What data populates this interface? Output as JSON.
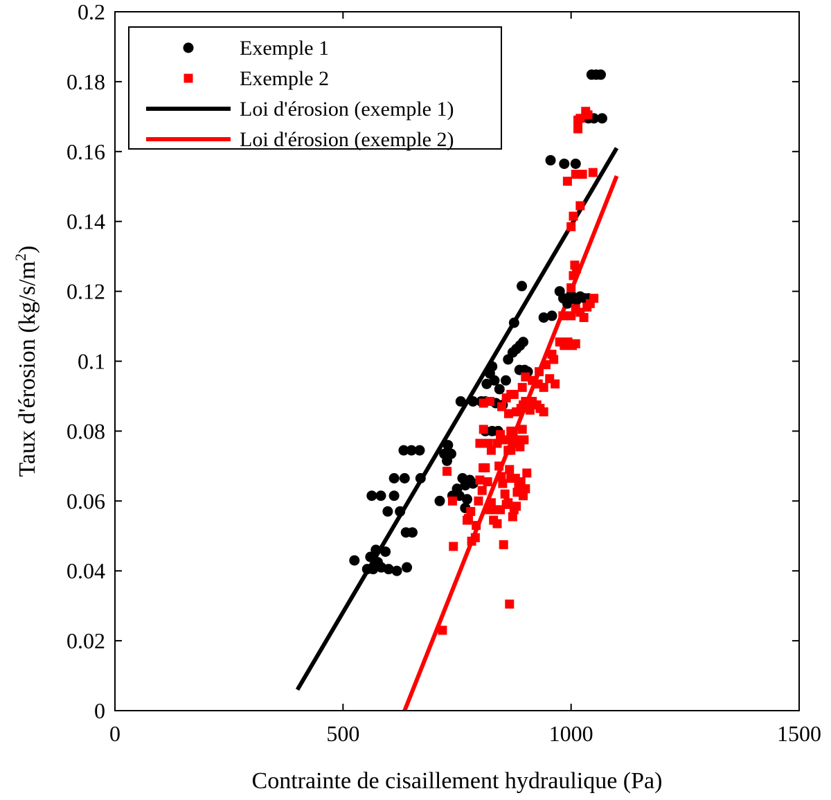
{
  "chart_data": {
    "type": "scatter",
    "xlabel": "Contrainte de cisaillement hydraulique (Pa)",
    "ylabel": "Taux d'érosion (kg/s/m",
    "ylabel_superscript": "2",
    "ylabel_suffix": ")",
    "xlim": [
      0,
      1500
    ],
    "ylim": [
      0,
      0.2
    ],
    "x_ticks": [
      0,
      500,
      1000,
      1500
    ],
    "x_tick_labels": [
      "0",
      "500",
      "1000",
      "1500"
    ],
    "y_ticks": [
      0,
      0.02,
      0.04,
      0.06,
      0.08,
      0.1,
      0.12,
      0.14,
      0.16,
      0.18,
      0.2
    ],
    "y_tick_labels": [
      "0",
      "0.02",
      "0.04",
      "0.06",
      "0.08",
      "0.1",
      "0.12",
      "0.14",
      "0.16",
      "0.18",
      "0.2"
    ],
    "grid": false,
    "legend_position": "top-left",
    "series": [
      {
        "name": "Exemple 1",
        "kind": "scatter",
        "marker": "circle",
        "color": "#000000",
        "points": [
          [
            525,
            0.043
          ],
          [
            553,
            0.0405
          ],
          [
            560,
            0.044
          ],
          [
            566,
            0.0405
          ],
          [
            572,
            0.046
          ],
          [
            576,
            0.0425
          ],
          [
            584,
            0.041
          ],
          [
            593,
            0.0455
          ],
          [
            600,
            0.0405
          ],
          [
            618,
            0.04
          ],
          [
            640,
            0.041
          ],
          [
            563,
            0.0615
          ],
          [
            583,
            0.0615
          ],
          [
            598,
            0.057
          ],
          [
            612,
            0.0615
          ],
          [
            612,
            0.0665
          ],
          [
            625,
            0.057
          ],
          [
            638,
            0.051
          ],
          [
            652,
            0.051
          ],
          [
            635,
            0.0665
          ],
          [
            670,
            0.0665
          ],
          [
            633,
            0.0745
          ],
          [
            650,
            0.0745
          ],
          [
            668,
            0.0745
          ],
          [
            712,
            0.06
          ],
          [
            722,
            0.0735
          ],
          [
            730,
            0.076
          ],
          [
            737,
            0.0735
          ],
          [
            728,
            0.0715
          ],
          [
            740,
            0.0615
          ],
          [
            750,
            0.0635
          ],
          [
            755,
            0.0615
          ],
          [
            762,
            0.0665
          ],
          [
            768,
            0.0645
          ],
          [
            772,
            0.0605
          ],
          [
            778,
            0.066
          ],
          [
            785,
            0.065
          ],
          [
            768,
            0.058
          ],
          [
            758,
            0.0885
          ],
          [
            785,
            0.0885
          ],
          [
            803,
            0.0885
          ],
          [
            812,
            0.0885
          ],
          [
            815,
            0.0935
          ],
          [
            822,
            0.0965
          ],
          [
            827,
            0.0985
          ],
          [
            832,
            0.0945
          ],
          [
            835,
            0.088
          ],
          [
            843,
            0.092
          ],
          [
            850,
            0.0875
          ],
          [
            857,
            0.0945
          ],
          [
            812,
            0.08
          ],
          [
            827,
            0.08
          ],
          [
            840,
            0.08
          ],
          [
            862,
            0.1005
          ],
          [
            872,
            0.1025
          ],
          [
            880,
            0.1035
          ],
          [
            888,
            0.1045
          ],
          [
            895,
            0.1055
          ],
          [
            898,
            0.0975
          ],
          [
            905,
            0.097
          ],
          [
            887,
            0.0975
          ],
          [
            875,
            0.111
          ],
          [
            892,
            0.1215
          ],
          [
            940,
            0.1125
          ],
          [
            958,
            0.113
          ],
          [
            975,
            0.12
          ],
          [
            983,
            0.118
          ],
          [
            992,
            0.1165
          ],
          [
            1000,
            0.119
          ],
          [
            1012,
            0.1175
          ],
          [
            1020,
            0.1185
          ],
          [
            1030,
            0.118
          ],
          [
            1038,
            0.118
          ],
          [
            955,
            0.1575
          ],
          [
            985,
            0.1565
          ],
          [
            1010,
            0.1565
          ],
          [
            1038,
            0.1695
          ],
          [
            1050,
            0.1695
          ],
          [
            1068,
            0.1695
          ],
          [
            1045,
            0.182
          ],
          [
            1055,
            0.182
          ],
          [
            1065,
            0.182
          ]
        ]
      },
      {
        "name": "Exemple 2",
        "kind": "scatter",
        "marker": "square",
        "color": "#ff0000",
        "points": [
          [
            718,
            0.023
          ],
          [
            865,
            0.0305
          ],
          [
            742,
            0.047
          ],
          [
            852,
            0.0475
          ],
          [
            728,
            0.0685
          ],
          [
            740,
            0.06
          ],
          [
            772,
            0.0545
          ],
          [
            775,
            0.055
          ],
          [
            780,
            0.057
          ],
          [
            782,
            0.0485
          ],
          [
            790,
            0.0495
          ],
          [
            792,
            0.053
          ],
          [
            797,
            0.06
          ],
          [
            800,
            0.066
          ],
          [
            805,
            0.063
          ],
          [
            807,
            0.0695
          ],
          [
            812,
            0.0695
          ],
          [
            817,
            0.0655
          ],
          [
            821,
            0.0575
          ],
          [
            825,
            0.0595
          ],
          [
            830,
            0.0545
          ],
          [
            833,
            0.0575
          ],
          [
            838,
            0.0535
          ],
          [
            842,
            0.07
          ],
          [
            845,
            0.0575
          ],
          [
            847,
            0.067
          ],
          [
            850,
            0.065
          ],
          [
            855,
            0.062
          ],
          [
            858,
            0.059
          ],
          [
            862,
            0.0595
          ],
          [
            865,
            0.069
          ],
          [
            868,
            0.0665
          ],
          [
            872,
            0.0555
          ],
          [
            875,
            0.0575
          ],
          [
            878,
            0.0665
          ],
          [
            882,
            0.0625
          ],
          [
            885,
            0.0645
          ],
          [
            890,
            0.0655
          ],
          [
            895,
            0.0615
          ],
          [
            900,
            0.0635
          ],
          [
            903,
            0.068
          ],
          [
            880,
            0.0585
          ],
          [
            868,
            0.0745
          ],
          [
            800,
            0.0765
          ],
          [
            808,
            0.0805
          ],
          [
            818,
            0.0765
          ],
          [
            825,
            0.0745
          ],
          [
            838,
            0.0765
          ],
          [
            845,
            0.079
          ],
          [
            850,
            0.0775
          ],
          [
            858,
            0.0775
          ],
          [
            862,
            0.0745
          ],
          [
            868,
            0.08
          ],
          [
            873,
            0.0785
          ],
          [
            878,
            0.0765
          ],
          [
            882,
            0.0775
          ],
          [
            888,
            0.0755
          ],
          [
            893,
            0.0805
          ],
          [
            897,
            0.0775
          ],
          [
            808,
            0.088
          ],
          [
            822,
            0.0885
          ],
          [
            848,
            0.087
          ],
          [
            858,
            0.0895
          ],
          [
            863,
            0.085
          ],
          [
            868,
            0.0905
          ],
          [
            875,
            0.0905
          ],
          [
            880,
            0.0855
          ],
          [
            890,
            0.0865
          ],
          [
            895,
            0.0875
          ],
          [
            900,
            0.0885
          ],
          [
            910,
            0.086
          ],
          [
            915,
            0.0885
          ],
          [
            925,
            0.0875
          ],
          [
            932,
            0.0865
          ],
          [
            940,
            0.0855
          ],
          [
            893,
            0.0925
          ],
          [
            900,
            0.0955
          ],
          [
            915,
            0.0945
          ],
          [
            928,
            0.0935
          ],
          [
            940,
            0.0925
          ],
          [
            953,
            0.095
          ],
          [
            965,
            0.0935
          ],
          [
            930,
            0.097
          ],
          [
            945,
            0.099
          ],
          [
            958,
            0.102
          ],
          [
            962,
            0.1005
          ],
          [
            975,
            0.1055
          ],
          [
            985,
            0.1045
          ],
          [
            993,
            0.1055
          ],
          [
            1003,
            0.1045
          ],
          [
            1010,
            0.105
          ],
          [
            982,
            0.113
          ],
          [
            1000,
            0.113
          ],
          [
            1010,
            0.115
          ],
          [
            1020,
            0.114
          ],
          [
            1028,
            0.1125
          ],
          [
            1035,
            0.1155
          ],
          [
            1042,
            0.1165
          ],
          [
            1050,
            0.118
          ],
          [
            1000,
            0.121
          ],
          [
            1005,
            0.1245
          ],
          [
            1008,
            0.1275
          ],
          [
            1012,
            0.1265
          ],
          [
            1000,
            0.1385
          ],
          [
            1005,
            0.1415
          ],
          [
            1020,
            0.1445
          ],
          [
            992,
            0.1515
          ],
          [
            1010,
            0.1535
          ],
          [
            1025,
            0.1535
          ],
          [
            1048,
            0.154
          ],
          [
            1015,
            0.1665
          ],
          [
            1015,
            0.169
          ],
          [
            1020,
            0.1695
          ],
          [
            1032,
            0.1715
          ],
          [
            1037,
            0.1705
          ]
        ]
      },
      {
        "name": "Loi d'érosion (exemple 1)",
        "kind": "line",
        "color": "#000000",
        "x": [
          400,
          1100
        ],
        "y": [
          0.006,
          0.161
        ]
      },
      {
        "name": "Loi d'érosion (exemple 2)",
        "kind": "line",
        "color": "#ff0000",
        "x": [
          635,
          1100
        ],
        "y": [
          0.0,
          0.153
        ]
      }
    ]
  }
}
